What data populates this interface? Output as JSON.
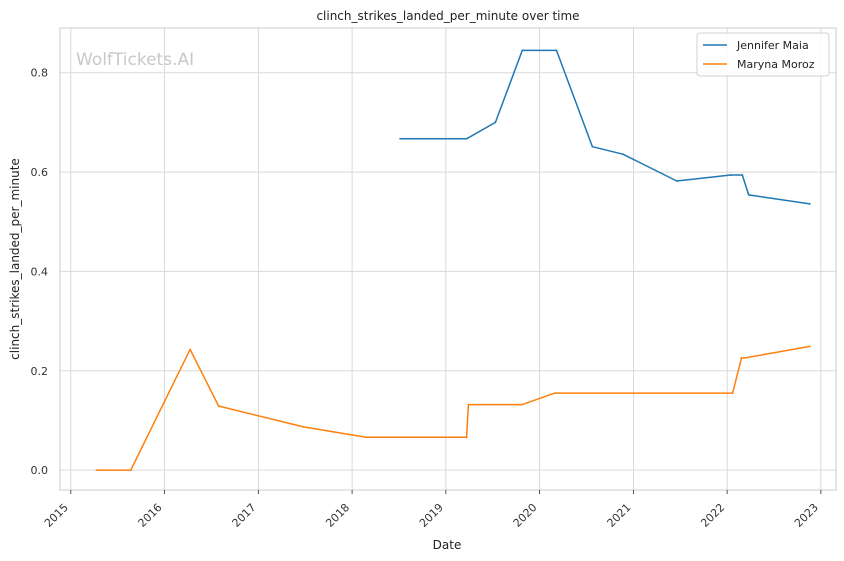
{
  "chart_data": {
    "type": "line",
    "title": "clinch_strikes_landed_per_minute over time",
    "xlabel": "Date",
    "ylabel": "clinch_strikes_landed_per_minute",
    "watermark": "WolfTickets.AI",
    "x_ticks": [
      "2015",
      "2016",
      "2017",
      "2018",
      "2019",
      "2020",
      "2021",
      "2022",
      "2023"
    ],
    "y_ticks": [
      "0.0",
      "0.2",
      "0.4",
      "0.6",
      "0.8"
    ],
    "xlim": [
      "2014-11-20",
      "2023-03-01"
    ],
    "ylim": [
      -0.04,
      0.89
    ],
    "grid": true,
    "legend_position": "top-right",
    "series": [
      {
        "name": "Jennifer Maia",
        "color": "#1f77b4",
        "points": [
          {
            "date": "2018-07-07",
            "value": 0.667
          },
          {
            "date": "2019-03-23",
            "value": 0.667
          },
          {
            "date": "2019-07-13",
            "value": 0.7
          },
          {
            "date": "2019-10-26",
            "value": 0.845
          },
          {
            "date": "2020-03-07",
            "value": 0.845
          },
          {
            "date": "2020-07-25",
            "value": 0.651
          },
          {
            "date": "2020-11-21",
            "value": 0.636
          },
          {
            "date": "2021-06-19",
            "value": 0.582
          },
          {
            "date": "2022-01-15",
            "value": 0.594
          },
          {
            "date": "2022-03-01",
            "value": 0.594
          },
          {
            "date": "2022-03-26",
            "value": 0.554
          },
          {
            "date": "2022-11-19",
            "value": 0.536
          }
        ]
      },
      {
        "name": "Maryna Moroz",
        "color": "#ff7f0e",
        "points": [
          {
            "date": "2015-04-11",
            "value": 0.0
          },
          {
            "date": "2015-08-23",
            "value": 0.0
          },
          {
            "date": "2016-04-10",
            "value": 0.243
          },
          {
            "date": "2016-07-30",
            "value": 0.129
          },
          {
            "date": "2017-06-25",
            "value": 0.087
          },
          {
            "date": "2018-02-24",
            "value": 0.066
          },
          {
            "date": "2019-03-23",
            "value": 0.066
          },
          {
            "date": "2019-03-30",
            "value": 0.132
          },
          {
            "date": "2019-10-26",
            "value": 0.132
          },
          {
            "date": "2020-02-29",
            "value": 0.155
          },
          {
            "date": "2022-01-22",
            "value": 0.155
          },
          {
            "date": "2022-02-26",
            "value": 0.226
          },
          {
            "date": "2022-03-12",
            "value": 0.226
          },
          {
            "date": "2022-11-19",
            "value": 0.249
          }
        ]
      }
    ]
  }
}
